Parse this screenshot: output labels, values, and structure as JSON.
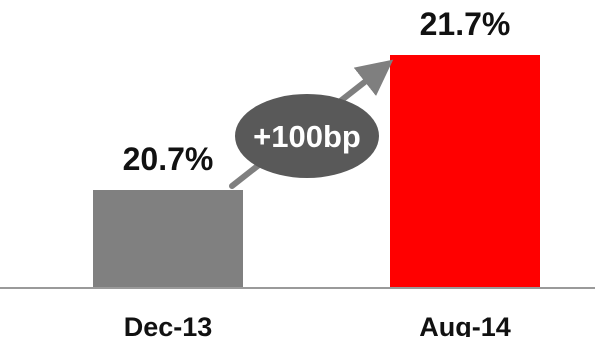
{
  "chart_data": {
    "type": "bar",
    "categories": [
      "Dec-13",
      "Aug-14"
    ],
    "values": [
      20.7,
      21.7
    ],
    "value_labels": [
      "20.7%",
      "21.7%"
    ],
    "colors": [
      "#808080",
      "#ff0000"
    ],
    "annotation": {
      "text": "+100bp",
      "badge_color": "#595959",
      "arrow_color": "#7f7f7f"
    },
    "axis_color": "#9a9a9a",
    "title": "",
    "xlabel": "",
    "ylabel": "",
    "grid": false,
    "legend": "none"
  }
}
